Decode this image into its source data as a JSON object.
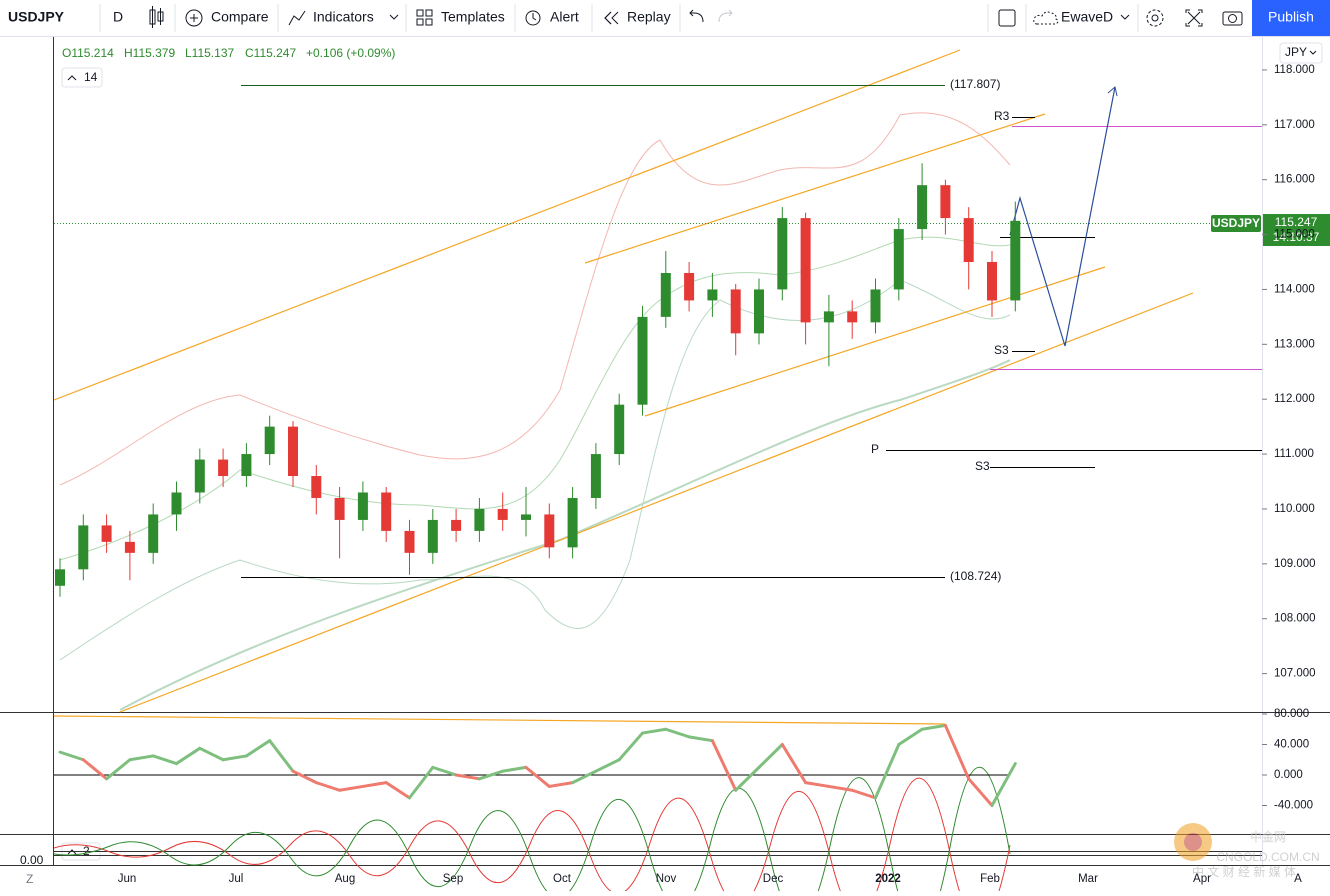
{
  "toolbar": {
    "symbol": "USDJPY",
    "interval": "D",
    "compare": "Compare",
    "indicators": "Indicators",
    "templates": "Templates",
    "alert": "Alert",
    "replay": "Replay",
    "layout": "EwaveD",
    "publish": "Publish"
  },
  "legend": {
    "open": "O115.214",
    "high": "H115.379",
    "low": "L115.137",
    "close": "C115.247",
    "change": "+0.106 (+0.09%)",
    "period": "14",
    "period2": "2"
  },
  "currency": "JPY",
  "badge": {
    "symbol": "USDJPY",
    "price": "115.247",
    "countdown": "14:10:37"
  },
  "annotations": {
    "high_level": "(117.807)",
    "low_level": "(108.724)",
    "r3": "R3",
    "s3_a": "S3",
    "p": "P",
    "s3_b": "S3"
  },
  "misc": {
    "z": "Z",
    "zero": "0.00"
  },
  "watermark": {
    "logo": "中金网",
    "site": "CNGOLD.COM.CN",
    "tagline": "中 文 财 经 新 媒 体"
  },
  "chart_data": {
    "type": "candlestick",
    "months": [
      "Jun",
      "Jul",
      "Aug",
      "Sep",
      "Oct",
      "Nov",
      "Dec",
      "2022",
      "Feb",
      "Mar",
      "Apr",
      "A"
    ],
    "ylim": [
      106.3,
      118.6
    ],
    "yticks": [
      {
        "value": 118,
        "label": "118.000"
      },
      {
        "value": 117,
        "label": "117.000"
      },
      {
        "value": 116,
        "label": "116.000"
      },
      {
        "value": 115,
        "label": "115.000"
      },
      {
        "value": 114,
        "label": "114.000"
      },
      {
        "value": 113,
        "label": "113.000"
      },
      {
        "value": 112,
        "label": "112.000"
      },
      {
        "value": 111,
        "label": "111.000"
      },
      {
        "value": 110,
        "label": "110.000"
      },
      {
        "value": 109,
        "label": "109.000"
      },
      {
        "value": 108,
        "label": "108.000"
      },
      {
        "value": 107,
        "label": "107.000"
      }
    ],
    "up_color": "#2e8b2e",
    "down_color": "#e53935",
    "candles": [
      [
        108.6,
        109.1,
        108.4,
        108.9
      ],
      [
        108.9,
        109.9,
        108.7,
        109.7
      ],
      [
        109.7,
        109.9,
        109.2,
        109.4
      ],
      [
        109.4,
        109.6,
        108.7,
        109.2
      ],
      [
        109.2,
        110.1,
        109.0,
        109.9
      ],
      [
        109.9,
        110.5,
        109.6,
        110.3
      ],
      [
        110.3,
        111.1,
        110.1,
        110.9
      ],
      [
        110.9,
        111.1,
        110.4,
        110.6
      ],
      [
        110.6,
        111.2,
        110.4,
        111.0
      ],
      [
        111.0,
        111.7,
        110.8,
        111.5
      ],
      [
        111.5,
        111.6,
        110.4,
        110.6
      ],
      [
        110.6,
        110.8,
        109.9,
        110.2
      ],
      [
        110.2,
        110.4,
        109.1,
        109.8
      ],
      [
        109.8,
        110.5,
        109.6,
        110.3
      ],
      [
        110.3,
        110.4,
        109.4,
        109.6
      ],
      [
        109.6,
        109.8,
        108.8,
        109.2
      ],
      [
        109.2,
        110.0,
        109.0,
        109.8
      ],
      [
        109.8,
        110.0,
        109.4,
        109.6
      ],
      [
        109.6,
        110.2,
        109.4,
        110.0
      ],
      [
        110.0,
        110.3,
        109.6,
        109.8
      ],
      [
        109.8,
        110.4,
        109.5,
        109.9
      ],
      [
        109.9,
        110.1,
        109.1,
        109.3
      ],
      [
        109.3,
        110.4,
        109.1,
        110.2
      ],
      [
        110.2,
        111.2,
        110.0,
        111.0
      ],
      [
        111.0,
        112.1,
        110.8,
        111.9
      ],
      [
        111.9,
        113.7,
        111.7,
        113.5
      ],
      [
        113.5,
        114.7,
        113.3,
        114.3
      ],
      [
        114.3,
        114.5,
        113.6,
        113.8
      ],
      [
        113.8,
        114.3,
        113.5,
        114.0
      ],
      [
        114.0,
        114.1,
        112.8,
        113.2
      ],
      [
        113.2,
        114.2,
        113.0,
        114.0
      ],
      [
        114.0,
        115.5,
        113.8,
        115.3
      ],
      [
        115.3,
        115.4,
        113.0,
        113.4
      ],
      [
        113.4,
        113.9,
        112.6,
        113.6
      ],
      [
        113.6,
        113.8,
        113.1,
        113.4
      ],
      [
        113.4,
        114.2,
        113.2,
        114.0
      ],
      [
        114.0,
        115.3,
        113.8,
        115.1
      ],
      [
        115.1,
        116.3,
        114.9,
        115.9
      ],
      [
        115.9,
        116.0,
        115.0,
        115.3
      ],
      [
        115.3,
        115.5,
        114.0,
        114.5
      ],
      [
        114.5,
        114.7,
        113.5,
        113.8
      ],
      [
        113.8,
        115.6,
        113.6,
        115.25
      ]
    ],
    "oscillator": {
      "ylim": [
        -80,
        80
      ],
      "yticks": [
        {
          "value": 80,
          "label": "80.000"
        },
        {
          "value": 40,
          "label": "40.000"
        },
        {
          "value": 0,
          "label": "0.000"
        },
        {
          "value": -40,
          "label": "-40.000"
        }
      ],
      "pos_color": "#7ebf7e",
      "neg_color": "#ef7a6e",
      "values": [
        30,
        20,
        -5,
        20,
        25,
        15,
        35,
        20,
        25,
        45,
        5,
        -10,
        -20,
        -15,
        -10,
        -30,
        10,
        0,
        -5,
        5,
        10,
        -15,
        -10,
        5,
        20,
        55,
        60,
        50,
        45,
        -20,
        10,
        40,
        -10,
        -15,
        -20,
        -30,
        40,
        60,
        65,
        -5,
        -40,
        15
      ]
    }
  }
}
